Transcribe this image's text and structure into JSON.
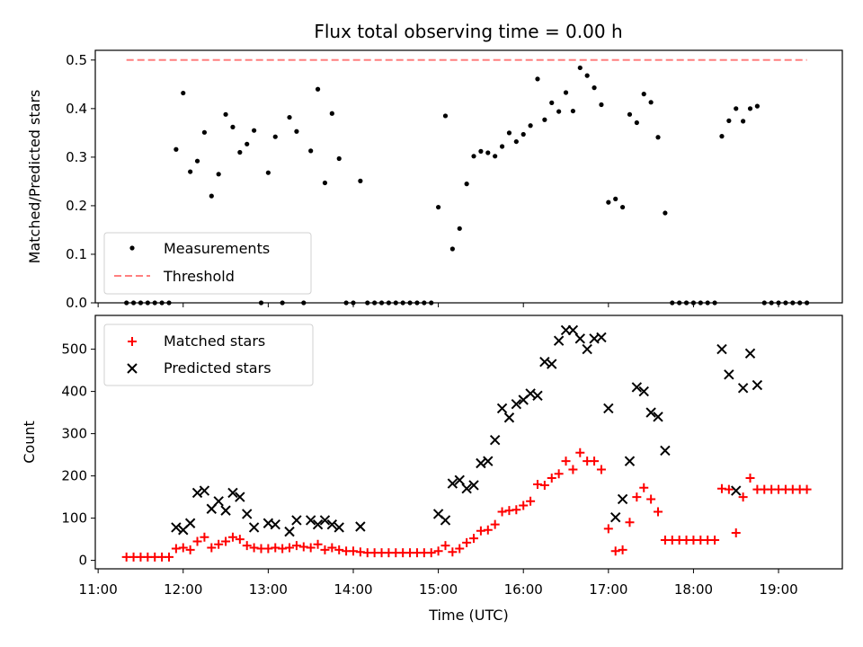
{
  "chart_data": [
    {
      "type": "scatter",
      "title": "Flux total observing time = 0.00 h",
      "xlabel": "",
      "ylabel": "Matched/Predicted stars",
      "ylim": [
        0,
        0.52
      ],
      "yticks": [
        "0.0",
        "0.1",
        "0.2",
        "0.3",
        "0.4",
        "0.5"
      ],
      "legend_position": "lower-left",
      "series": [
        {
          "name": "Measurements",
          "marker": "dot",
          "color": "#000000",
          "points": [
            [
              "11:20",
              0.0
            ],
            [
              "11:25",
              0.0
            ],
            [
              "11:30",
              0.0
            ],
            [
              "11:35",
              0.0
            ],
            [
              "11:40",
              0.0
            ],
            [
              "11:45",
              0.0
            ],
            [
              "11:50",
              0.0
            ],
            [
              "11:55",
              0.316
            ],
            [
              "12:00",
              0.432
            ],
            [
              "12:05",
              0.27
            ],
            [
              "12:10",
              0.292
            ],
            [
              "12:15",
              0.351
            ],
            [
              "12:20",
              0.22
            ],
            [
              "12:25",
              0.265
            ],
            [
              "12:30",
              0.388
            ],
            [
              "12:35",
              0.362
            ],
            [
              "12:40",
              0.31
            ],
            [
              "12:45",
              0.327
            ],
            [
              "12:50",
              0.355
            ],
            [
              "12:55",
              0.0
            ],
            [
              "13:00",
              0.268
            ],
            [
              "13:05",
              0.342
            ],
            [
              "13:10",
              0.0
            ],
            [
              "13:15",
              0.382
            ],
            [
              "13:20",
              0.353
            ],
            [
              "13:25",
              0.0
            ],
            [
              "13:30",
              0.313
            ],
            [
              "13:35",
              0.44
            ],
            [
              "13:40",
              0.247
            ],
            [
              "13:45",
              0.39
            ],
            [
              "13:50",
              0.297
            ],
            [
              "13:55",
              0.0
            ],
            [
              "14:00",
              0.0
            ],
            [
              "14:05",
              0.251
            ],
            [
              "14:10",
              0.0
            ],
            [
              "14:15",
              0.0
            ],
            [
              "14:20",
              0.0
            ],
            [
              "14:25",
              0.0
            ],
            [
              "14:30",
              0.0
            ],
            [
              "14:35",
              0.0
            ],
            [
              "14:40",
              0.0
            ],
            [
              "14:45",
              0.0
            ],
            [
              "14:50",
              0.0
            ],
            [
              "14:55",
              0.0
            ],
            [
              "15:00",
              0.197
            ],
            [
              "15:05",
              0.385
            ],
            [
              "15:10",
              0.111
            ],
            [
              "15:15",
              0.153
            ],
            [
              "15:20",
              0.245
            ],
            [
              "15:25",
              0.302
            ],
            [
              "15:30",
              0.312
            ],
            [
              "15:35",
              0.309
            ],
            [
              "15:40",
              0.302
            ],
            [
              "15:45",
              0.322
            ],
            [
              "15:50",
              0.35
            ],
            [
              "15:55",
              0.332
            ],
            [
              "16:00",
              0.347
            ],
            [
              "16:05",
              0.365
            ],
            [
              "16:10",
              0.461
            ],
            [
              "16:15",
              0.377
            ],
            [
              "16:20",
              0.412
            ],
            [
              "16:25",
              0.394
            ],
            [
              "16:30",
              0.433
            ],
            [
              "16:35",
              0.395
            ],
            [
              "16:40",
              0.484
            ],
            [
              "16:45",
              0.468
            ],
            [
              "16:50",
              0.443
            ],
            [
              "16:55",
              0.408
            ],
            [
              "17:00",
              0.207
            ],
            [
              "17:05",
              0.214
            ],
            [
              "17:10",
              0.197
            ],
            [
              "17:15",
              0.388
            ],
            [
              "17:20",
              0.371
            ],
            [
              "17:25",
              0.43
            ],
            [
              "17:30",
              0.413
            ],
            [
              "17:35",
              0.341
            ],
            [
              "17:40",
              0.185
            ],
            [
              "17:45",
              0.0
            ],
            [
              "17:50",
              0.0
            ],
            [
              "17:55",
              0.0
            ],
            [
              "18:00",
              0.0
            ],
            [
              "18:05",
              0.0
            ],
            [
              "18:10",
              0.0
            ],
            [
              "18:15",
              0.0
            ],
            [
              "18:20",
              0.343
            ],
            [
              "18:25",
              0.375
            ],
            [
              "18:30",
              0.4
            ],
            [
              "18:35",
              0.374
            ],
            [
              "18:40",
              0.4
            ],
            [
              "18:45",
              0.405
            ],
            [
              "18:50",
              0.0
            ],
            [
              "18:55",
              0.0
            ],
            [
              "19:00",
              0.0
            ],
            [
              "19:05",
              0.0
            ],
            [
              "19:10",
              0.0
            ],
            [
              "19:15",
              0.0
            ],
            [
              "19:20",
              0.0
            ]
          ]
        },
        {
          "name": "Threshold",
          "marker": "dashed-line",
          "color": "#ff7f7f",
          "points": [
            [
              "11:20",
              0.5
            ],
            [
              "19:20",
              0.5
            ]
          ]
        }
      ]
    },
    {
      "type": "scatter",
      "title": "",
      "xlabel": "Time (UTC)",
      "ylabel": "Count",
      "xlim": [
        "10:58",
        "19:45"
      ],
      "ylim": [
        -20,
        580
      ],
      "yticks": [
        "0",
        "100",
        "200",
        "300",
        "400",
        "500"
      ],
      "xticks": [
        "11:00",
        "12:00",
        "13:00",
        "14:00",
        "15:00",
        "16:00",
        "17:00",
        "18:00",
        "19:00"
      ],
      "legend_position": "upper-left",
      "series": [
        {
          "name": "Matched stars",
          "marker": "plus",
          "color": "#ff0000",
          "points": [
            [
              "11:20",
              8
            ],
            [
              "11:25",
              8
            ],
            [
              "11:30",
              8
            ],
            [
              "11:35",
              8
            ],
            [
              "11:40",
              8
            ],
            [
              "11:45",
              8
            ],
            [
              "11:50",
              8
            ],
            [
              "11:55",
              28
            ],
            [
              "12:00",
              30
            ],
            [
              "12:05",
              25
            ],
            [
              "12:10",
              45
            ],
            [
              "12:15",
              55
            ],
            [
              "12:20",
              30
            ],
            [
              "12:25",
              38
            ],
            [
              "12:30",
              45
            ],
            [
              "12:35",
              55
            ],
            [
              "12:40",
              50
            ],
            [
              "12:45",
              35
            ],
            [
              "12:50",
              30
            ],
            [
              "12:55",
              28
            ],
            [
              "13:00",
              28
            ],
            [
              "13:05",
              30
            ],
            [
              "13:10",
              28
            ],
            [
              "13:15",
              30
            ],
            [
              "13:20",
              35
            ],
            [
              "13:25",
              32
            ],
            [
              "13:30",
              30
            ],
            [
              "13:35",
              38
            ],
            [
              "13:40",
              25
            ],
            [
              "13:45",
              30
            ],
            [
              "13:50",
              25
            ],
            [
              "13:55",
              22
            ],
            [
              "14:00",
              22
            ],
            [
              "14:05",
              20
            ],
            [
              "14:10",
              18
            ],
            [
              "14:15",
              18
            ],
            [
              "14:20",
              18
            ],
            [
              "14:25",
              18
            ],
            [
              "14:30",
              18
            ],
            [
              "14:35",
              18
            ],
            [
              "14:40",
              18
            ],
            [
              "14:45",
              18
            ],
            [
              "14:50",
              18
            ],
            [
              "14:55",
              18
            ],
            [
              "15:00",
              22
            ],
            [
              "15:05",
              35
            ],
            [
              "15:10",
              20
            ],
            [
              "15:15",
              28
            ],
            [
              "15:20",
              42
            ],
            [
              "15:25",
              52
            ],
            [
              "15:30",
              70
            ],
            [
              "15:35",
              72
            ],
            [
              "15:40",
              85
            ],
            [
              "15:45",
              115
            ],
            [
              "15:50",
              118
            ],
            [
              "15:55",
              120
            ],
            [
              "16:00",
              130
            ],
            [
              "16:05",
              140
            ],
            [
              "16:10",
              180
            ],
            [
              "16:15",
              178
            ],
            [
              "16:20",
              195
            ],
            [
              "16:25",
              205
            ],
            [
              "16:30",
              235
            ],
            [
              "16:35",
              215
            ],
            [
              "16:40",
              255
            ],
            [
              "16:45",
              235
            ],
            [
              "16:50",
              235
            ],
            [
              "16:55",
              215
            ],
            [
              "17:00",
              75
            ],
            [
              "17:05",
              22
            ],
            [
              "17:10",
              25
            ],
            [
              "17:15",
              90
            ],
            [
              "17:20",
              150
            ],
            [
              "17:25",
              172
            ],
            [
              "17:30",
              145
            ],
            [
              "17:35",
              115
            ],
            [
              "17:40",
              48
            ],
            [
              "17:45",
              48
            ],
            [
              "17:50",
              48
            ],
            [
              "17:55",
              48
            ],
            [
              "18:00",
              48
            ],
            [
              "18:05",
              48
            ],
            [
              "18:10",
              48
            ],
            [
              "18:15",
              48
            ],
            [
              "18:20",
              170
            ],
            [
              "18:25",
              168
            ],
            [
              "18:30",
              65
            ],
            [
              "18:35",
              150
            ],
            [
              "18:40",
              195
            ],
            [
              "18:45",
              168
            ],
            [
              "18:50",
              168
            ],
            [
              "18:55",
              168
            ],
            [
              "19:00",
              168
            ],
            [
              "19:05",
              168
            ],
            [
              "19:10",
              168
            ],
            [
              "19:15",
              168
            ],
            [
              "19:20",
              168
            ]
          ]
        },
        {
          "name": "Predicted stars",
          "marker": "x",
          "color": "#000000",
          "points": [
            [
              "11:55",
              78
            ],
            [
              "12:00",
              72
            ],
            [
              "12:05",
              88
            ],
            [
              "12:10",
              160
            ],
            [
              "12:15",
              165
            ],
            [
              "12:20",
              122
            ],
            [
              "12:25",
              140
            ],
            [
              "12:30",
              118
            ],
            [
              "12:35",
              160
            ],
            [
              "12:40",
              150
            ],
            [
              "12:45",
              110
            ],
            [
              "12:50",
              78
            ],
            [
              "13:00",
              88
            ],
            [
              "13:05",
              85
            ],
            [
              "13:15",
              68
            ],
            [
              "13:20",
              95
            ],
            [
              "13:30",
              95
            ],
            [
              "13:35",
              85
            ],
            [
              "13:40",
              95
            ],
            [
              "13:45",
              85
            ],
            [
              "13:50",
              78
            ],
            [
              "14:05",
              80
            ],
            [
              "15:00",
              110
            ],
            [
              "15:05",
              95
            ],
            [
              "15:10",
              182
            ],
            [
              "15:15",
              190
            ],
            [
              "15:20",
              170
            ],
            [
              "15:25",
              178
            ],
            [
              "15:30",
              230
            ],
            [
              "15:35",
              235
            ],
            [
              "15:40",
              285
            ],
            [
              "15:45",
              360
            ],
            [
              "15:50",
              338
            ],
            [
              "15:55",
              370
            ],
            [
              "16:00",
              380
            ],
            [
              "16:05",
              395
            ],
            [
              "16:10",
              390
            ],
            [
              "16:15",
              470
            ],
            [
              "16:20",
              465
            ],
            [
              "16:25",
              520
            ],
            [
              "16:30",
              545
            ],
            [
              "16:35",
              545
            ],
            [
              "16:40",
              525
            ],
            [
              "16:45",
              500
            ],
            [
              "16:50",
              525
            ],
            [
              "16:55",
              528
            ],
            [
              "17:00",
              360
            ],
            [
              "17:05",
              102
            ],
            [
              "17:10",
              145
            ],
            [
              "17:15",
              235
            ],
            [
              "17:20",
              410
            ],
            [
              "17:25",
              400
            ],
            [
              "17:30",
              350
            ],
            [
              "17:35",
              340
            ],
            [
              "17:40",
              260
            ],
            [
              "18:20",
              500
            ],
            [
              "18:25",
              440
            ],
            [
              "18:30",
              165
            ],
            [
              "18:35",
              408
            ],
            [
              "18:40",
              490
            ],
            [
              "18:45",
              415
            ]
          ]
        }
      ]
    }
  ]
}
